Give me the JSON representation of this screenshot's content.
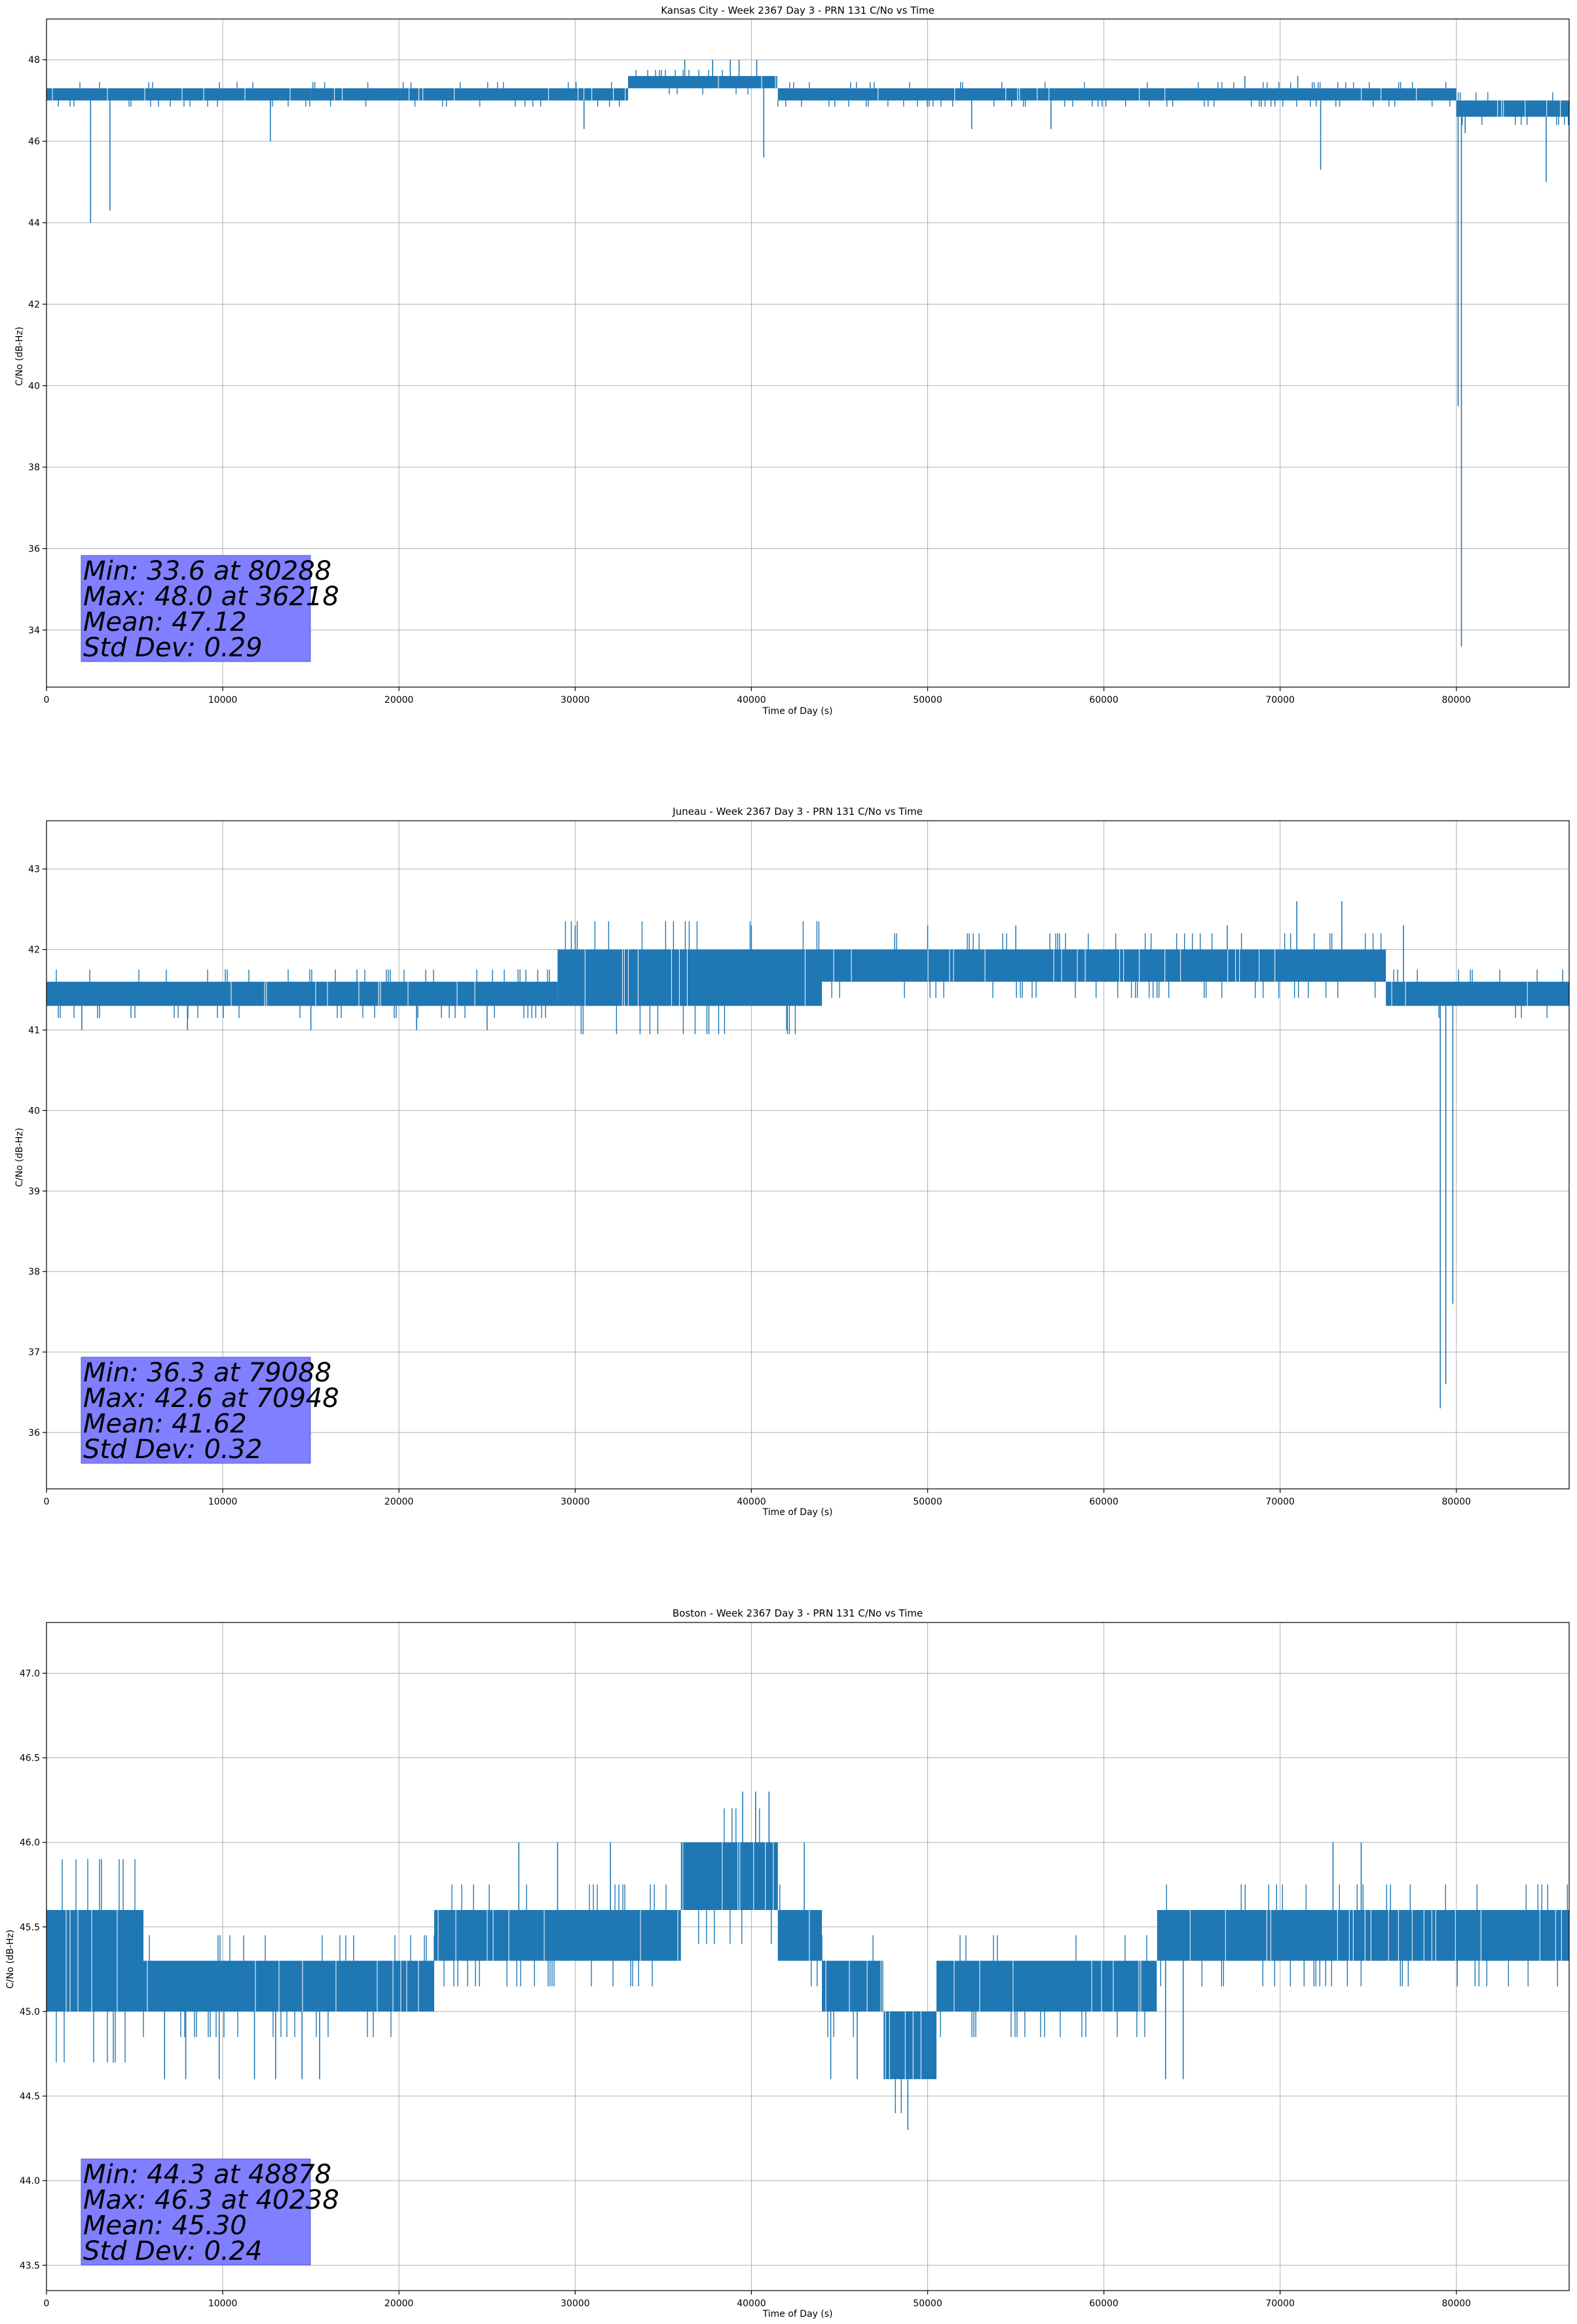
{
  "chart_data": [
    {
      "type": "line",
      "title": "Kansas City - Week 2367 Day 3 - PRN 131 C/No vs Time",
      "xlabel": "Time of Day (s)",
      "ylabel": "C/No (dB-Hz)",
      "xlim": [
        0,
        86400
      ],
      "ylim": [
        32.6,
        49.0
      ],
      "xticks": [
        0,
        10000,
        20000,
        30000,
        40000,
        50000,
        60000,
        70000,
        80000
      ],
      "yticks": [
        34,
        36,
        38,
        40,
        42,
        44,
        46,
        48
      ],
      "ytick_labels": [
        "34",
        "36",
        "38",
        "40",
        "42",
        "44",
        "46",
        "48"
      ],
      "grid": true,
      "color": "#1f77b4",
      "stats": [
        "Min: 33.6 at 80288",
        "Max: 48.0 at 36218",
        "Mean: 47.12",
        "Std Dev: 0.29"
      ],
      "band_segments": [
        {
          "x0": 0,
          "x1": 15000,
          "lo": 47.0,
          "hi": 47.3
        },
        {
          "x0": 15000,
          "x1": 33000,
          "lo": 47.0,
          "hi": 47.3
        },
        {
          "x0": 33000,
          "x1": 41500,
          "lo": 47.3,
          "hi": 47.6
        },
        {
          "x0": 41500,
          "x1": 80000,
          "lo": 47.0,
          "hi": 47.3
        },
        {
          "x0": 80000,
          "x1": 86400,
          "lo": 46.6,
          "hi": 47.0
        }
      ],
      "spikes": [
        {
          "x": 2500,
          "y": 44.0
        },
        {
          "x": 3600,
          "y": 44.3
        },
        {
          "x": 12700,
          "y": 46.0
        },
        {
          "x": 30500,
          "y": 46.3
        },
        {
          "x": 40700,
          "y": 45.6
        },
        {
          "x": 52500,
          "y": 46.3
        },
        {
          "x": 57000,
          "y": 46.3
        },
        {
          "x": 72300,
          "y": 45.3
        },
        {
          "x": 80100,
          "y": 39.5
        },
        {
          "x": 80288,
          "y": 33.6
        },
        {
          "x": 80500,
          "y": 46.2
        },
        {
          "x": 85100,
          "y": 45.0
        }
      ],
      "upward_spikes": [
        {
          "x": 36218,
          "y": 48.0
        },
        {
          "x": 37800,
          "y": 48.0
        },
        {
          "x": 38800,
          "y": 48.0
        },
        {
          "x": 39300,
          "y": 48.0
        },
        {
          "x": 40300,
          "y": 48.0
        },
        {
          "x": 68000,
          "y": 47.6
        },
        {
          "x": 71000,
          "y": 47.6
        }
      ]
    },
    {
      "type": "line",
      "title": "Juneau - Week 2367 Day 3 - PRN 131 C/No vs Time",
      "xlabel": "Time of Day (s)",
      "ylabel": "C/No (dB-Hz)",
      "xlim": [
        0,
        86400
      ],
      "ylim": [
        35.3,
        43.6
      ],
      "xticks": [
        0,
        10000,
        20000,
        30000,
        40000,
        50000,
        60000,
        70000,
        80000
      ],
      "yticks": [
        36,
        37,
        38,
        39,
        40,
        41,
        42,
        43
      ],
      "ytick_labels": [
        "36",
        "37",
        "38",
        "39",
        "40",
        "41",
        "42",
        "43"
      ],
      "grid": true,
      "color": "#1f77b4",
      "stats": [
        "Min: 36.3 at 79088",
        "Max: 42.6 at 70948",
        "Mean: 41.62",
        "Std Dev: 0.32"
      ],
      "band_segments": [
        {
          "x0": 0,
          "x1": 29000,
          "lo": 41.3,
          "hi": 41.6
        },
        {
          "x0": 29000,
          "x1": 44000,
          "lo": 41.3,
          "hi": 42.0
        },
        {
          "x0": 44000,
          "x1": 59000,
          "lo": 41.6,
          "hi": 42.0
        },
        {
          "x0": 59000,
          "x1": 76000,
          "lo": 41.6,
          "hi": 42.0
        },
        {
          "x0": 76000,
          "x1": 86400,
          "lo": 41.3,
          "hi": 41.6
        }
      ],
      "spikes": [
        {
          "x": 2000,
          "y": 41.0
        },
        {
          "x": 8000,
          "y": 41.0
        },
        {
          "x": 15000,
          "y": 41.0
        },
        {
          "x": 21000,
          "y": 41.0
        },
        {
          "x": 25000,
          "y": 41.0
        },
        {
          "x": 42000,
          "y": 41.0
        },
        {
          "x": 79088,
          "y": 36.3
        },
        {
          "x": 79400,
          "y": 36.6
        },
        {
          "x": 79800,
          "y": 37.6
        }
      ],
      "upward_spikes": [
        {
          "x": 30000,
          "y": 42.3
        },
        {
          "x": 40000,
          "y": 42.3
        },
        {
          "x": 50000,
          "y": 42.3
        },
        {
          "x": 55000,
          "y": 42.3
        },
        {
          "x": 67000,
          "y": 42.3
        },
        {
          "x": 70948,
          "y": 42.6
        },
        {
          "x": 73500,
          "y": 42.6
        },
        {
          "x": 77000,
          "y": 42.3
        }
      ]
    },
    {
      "type": "line",
      "title": "Boston - Week 2367 Day 3 - PRN 131 C/No vs Time",
      "xlabel": "Time of Day (s)",
      "ylabel": "C/No (dB-Hz)",
      "xlim": [
        0,
        86400
      ],
      "ylim": [
        43.35,
        47.3
      ],
      "xticks": [
        0,
        10000,
        20000,
        30000,
        40000,
        50000,
        60000,
        70000,
        80000
      ],
      "yticks": [
        43.5,
        44.0,
        44.5,
        45.0,
        45.5,
        46.0,
        46.5,
        47.0
      ],
      "ytick_labels": [
        "43.5",
        "44.0",
        "44.5",
        "45.0",
        "45.5",
        "46.0",
        "46.5",
        "47.0"
      ],
      "grid": true,
      "color": "#1f77b4",
      "stats": [
        "Min: 44.3 at 48878",
        "Max: 46.3 at 40238",
        "Mean: 45.30",
        "Std Dev: 0.24"
      ],
      "band_segments": [
        {
          "x0": 0,
          "x1": 5500,
          "lo": 45.0,
          "hi": 45.6
        },
        {
          "x0": 5500,
          "x1": 22000,
          "lo": 45.0,
          "hi": 45.3
        },
        {
          "x0": 22000,
          "x1": 36000,
          "lo": 45.3,
          "hi": 45.6
        },
        {
          "x0": 36000,
          "x1": 41500,
          "lo": 45.6,
          "hi": 46.0
        },
        {
          "x0": 41500,
          "x1": 44000,
          "lo": 45.3,
          "hi": 45.6
        },
        {
          "x0": 44000,
          "x1": 47500,
          "lo": 45.0,
          "hi": 45.3
        },
        {
          "x0": 47500,
          "x1": 50500,
          "lo": 44.6,
          "hi": 45.0
        },
        {
          "x0": 50500,
          "x1": 63000,
          "lo": 45.0,
          "hi": 45.3
        },
        {
          "x0": 63000,
          "x1": 86400,
          "lo": 45.3,
          "hi": 45.6
        }
      ],
      "spikes": [
        {
          "x": 6700,
          "y": 44.6
        },
        {
          "x": 7900,
          "y": 44.6
        },
        {
          "x": 9800,
          "y": 44.6
        },
        {
          "x": 11800,
          "y": 44.6
        },
        {
          "x": 13000,
          "y": 44.6
        },
        {
          "x": 14500,
          "y": 44.6
        },
        {
          "x": 15500,
          "y": 44.6
        },
        {
          "x": 44500,
          "y": 44.6
        },
        {
          "x": 46000,
          "y": 44.6
        },
        {
          "x": 48878,
          "y": 44.3
        },
        {
          "x": 63500,
          "y": 44.6
        },
        {
          "x": 64500,
          "y": 44.6
        }
      ],
      "upward_spikes": [
        {
          "x": 26800,
          "y": 46.0
        },
        {
          "x": 29000,
          "y": 46.0
        },
        {
          "x": 32000,
          "y": 46.0
        },
        {
          "x": 39500,
          "y": 46.3
        },
        {
          "x": 40238,
          "y": 46.3
        },
        {
          "x": 41000,
          "y": 46.3
        },
        {
          "x": 43000,
          "y": 46.0
        },
        {
          "x": 73000,
          "y": 46.0
        },
        {
          "x": 74600,
          "y": 46.0
        }
      ]
    }
  ]
}
